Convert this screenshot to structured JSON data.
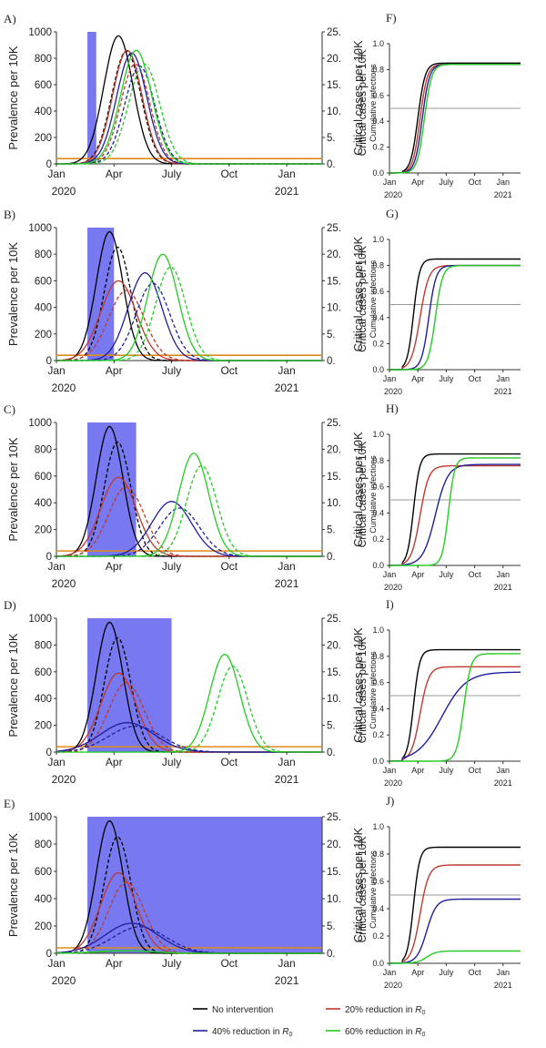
{
  "left_panel": {
    "ylabel_left": "Prevalence per 10K",
    "ylabel_right": "Critical cases per 10K",
    "yticks_left": [
      "0",
      "200",
      "400",
      "600",
      "800",
      "1000"
    ],
    "yticks_right": [
      "0.",
      "5.",
      "10.",
      "15.",
      "20.",
      "25."
    ],
    "xticks_top": [
      "Jan",
      "Apr",
      "July",
      "Oct",
      "Jan"
    ],
    "year_left": "2020",
    "year_right": "2021"
  },
  "right_panel": {
    "ylabel_main": "Critical cases per 10K",
    "ylabel_sub": "Cumulative infections",
    "yticks": [
      "0.0",
      "0.2",
      "0.4",
      "0.6",
      "0.8",
      "1.0"
    ],
    "xticks_top": [
      "Jan",
      "Apr",
      "July",
      "Oct",
      "Jan"
    ],
    "year_left": "2020",
    "year_right": "2021"
  },
  "legend": [
    {
      "label": "No intervention",
      "color": "#000000"
    },
    {
      "label": "20% reduction in R0",
      "color": "#c0392b"
    },
    {
      "label": "40% reduction in R0",
      "color": "#1f1f9a"
    },
    {
      "label": "60% reduction in R0",
      "color": "#22cc22"
    }
  ],
  "chart_data": [
    {
      "type": "line",
      "panel": "A)",
      "xlabel": "",
      "ylabel": "Prevalence per 10K",
      "ylim": [
        0,
        1000
      ],
      "intervention_weeks": [
        7,
        9
      ],
      "threshold_prevalence": 40,
      "series": [
        {
          "name": "No intervention",
          "peak_week": 14,
          "peak_value": 970,
          "width": 3.3
        },
        {
          "name": "20% reduction in R0",
          "peak_week": 16,
          "peak_value": 860,
          "width": 3.3
        },
        {
          "name": "40% reduction in R0",
          "peak_week": 17,
          "peak_value": 840,
          "width": 3.4
        },
        {
          "name": "60% reduction in R0",
          "peak_week": 18,
          "peak_value": 860,
          "width": 3.5
        }
      ]
    },
    {
      "type": "line",
      "panel": "B)",
      "xlabel": "",
      "ylabel": "Prevalence per 10K",
      "ylim": [
        0,
        1000
      ],
      "intervention_weeks": [
        7,
        13
      ],
      "threshold_prevalence": 40,
      "series": [
        {
          "name": "No intervention",
          "peak_week": 12,
          "peak_value": 970,
          "width": 3.0
        },
        {
          "name": "20% reduction in R0",
          "peak_week": 14,
          "peak_value": 600,
          "width": 4.0
        },
        {
          "name": "40% reduction in R0",
          "peak_week": 20,
          "peak_value": 660,
          "width": 3.8
        },
        {
          "name": "60% reduction in R0",
          "peak_week": 24,
          "peak_value": 800,
          "width": 3.4
        }
      ]
    },
    {
      "type": "line",
      "panel": "C)",
      "xlabel": "",
      "ylabel": "Prevalence per 10K",
      "ylim": [
        0,
        1000
      ],
      "intervention_weeks": [
        7,
        18
      ],
      "threshold_prevalence": 40,
      "series": [
        {
          "name": "No intervention",
          "peak_week": 12,
          "peak_value": 970,
          "width": 3.0
        },
        {
          "name": "20% reduction in R0",
          "peak_week": 14,
          "peak_value": 590,
          "width": 4.0
        },
        {
          "name": "40% reduction in R0",
          "peak_week": 26,
          "peak_value": 410,
          "width": 4.5
        },
        {
          "name": "60% reduction in R0",
          "peak_week": 31,
          "peak_value": 770,
          "width": 3.4
        }
      ]
    },
    {
      "type": "line",
      "panel": "D)",
      "xlabel": "",
      "ylabel": "Prevalence per 10K",
      "ylim": [
        0,
        1000
      ],
      "intervention_weeks": [
        7,
        26
      ],
      "threshold_prevalence": 40,
      "series": [
        {
          "name": "No intervention",
          "peak_week": 12,
          "peak_value": 970,
          "width": 3.0
        },
        {
          "name": "20% reduction in R0",
          "peak_week": 14,
          "peak_value": 590,
          "width": 4.0
        },
        {
          "name": "40% reduction in R0",
          "peak_week": 16,
          "peak_value": 220,
          "width": 6.0
        },
        {
          "name": "60% reduction in R0",
          "peak_week": 38,
          "peak_value": 730,
          "width": 3.4
        }
      ]
    },
    {
      "type": "line",
      "panel": "E)",
      "xlabel": "",
      "ylabel": "Prevalence per 10K",
      "ylim": [
        0,
        1000
      ],
      "intervention_weeks": [
        7,
        60
      ],
      "threshold_prevalence": 40,
      "series": [
        {
          "name": "No intervention",
          "peak_week": 12,
          "peak_value": 970,
          "width": 3.0
        },
        {
          "name": "20% reduction in R0",
          "peak_week": 14,
          "peak_value": 590,
          "width": 4.0
        },
        {
          "name": "40% reduction in R0",
          "peak_week": 17,
          "peak_value": 220,
          "width": 6.0
        },
        {
          "name": "60% reduction in R0",
          "peak_week": 15,
          "peak_value": 20,
          "width": 6.0
        }
      ]
    },
    {
      "type": "line",
      "panel": "F)",
      "xlabel": "",
      "ylabel": "Cumulative infections",
      "ylim": [
        0,
        1
      ],
      "reference_line": 0.5,
      "series": [
        {
          "name": "No intervention",
          "final": 0.85,
          "mid_week": 13,
          "k": 0.6
        },
        {
          "name": "20% reduction in R0",
          "final": 0.84,
          "mid_week": 14,
          "k": 0.6
        },
        {
          "name": "40% reduction in R0",
          "final": 0.84,
          "mid_week": 15,
          "k": 0.6
        },
        {
          "name": "60% reduction in R0",
          "final": 0.84,
          "mid_week": 16,
          "k": 0.6
        }
      ]
    },
    {
      "type": "line",
      "panel": "G)",
      "xlabel": "",
      "ylabel": "Cumulative infections",
      "ylim": [
        0,
        1
      ],
      "reference_line": 0.5,
      "series": [
        {
          "name": "No intervention",
          "final": 0.85,
          "mid_week": 11,
          "k": 0.7
        },
        {
          "name": "20% reduction in R0",
          "final": 0.8,
          "mid_week": 14,
          "k": 0.5
        },
        {
          "name": "40% reduction in R0",
          "final": 0.8,
          "mid_week": 18,
          "k": 0.6
        },
        {
          "name": "60% reduction in R0",
          "final": 0.8,
          "mid_week": 21,
          "k": 0.6
        }
      ]
    },
    {
      "type": "line",
      "panel": "H)",
      "xlabel": "",
      "ylabel": "Cumulative infections",
      "ylim": [
        0,
        1
      ],
      "reference_line": 0.5,
      "series": [
        {
          "name": "No intervention",
          "final": 0.85,
          "mid_week": 11,
          "k": 0.7
        },
        {
          "name": "20% reduction in R0",
          "final": 0.76,
          "mid_week": 14,
          "k": 0.5
        },
        {
          "name": "40% reduction in R0",
          "final": 0.77,
          "mid_week": 21,
          "k": 0.35
        },
        {
          "name": "60% reduction in R0",
          "final": 0.82,
          "mid_week": 27,
          "k": 0.7
        }
      ]
    },
    {
      "type": "line",
      "panel": "I)",
      "xlabel": "",
      "ylabel": "Cumulative infections",
      "ylim": [
        0,
        1
      ],
      "reference_line": 0.5,
      "series": [
        {
          "name": "No intervention",
          "final": 0.85,
          "mid_week": 11,
          "k": 0.7
        },
        {
          "name": "20% reduction in R0",
          "final": 0.72,
          "mid_week": 14,
          "k": 0.5
        },
        {
          "name": "40% reduction in R0",
          "final": 0.68,
          "mid_week": 24,
          "k": 0.18
        },
        {
          "name": "60% reduction in R0",
          "final": 0.82,
          "mid_week": 34,
          "k": 0.6
        }
      ]
    },
    {
      "type": "line",
      "panel": "J)",
      "xlabel": "",
      "ylabel": "Cumulative infections",
      "ylim": [
        0,
        1
      ],
      "reference_line": 0.5,
      "series": [
        {
          "name": "No intervention",
          "final": 0.85,
          "mid_week": 11,
          "k": 0.7
        },
        {
          "name": "20% reduction in R0",
          "final": 0.72,
          "mid_week": 14,
          "k": 0.5
        },
        {
          "name": "40% reduction in R0",
          "final": 0.47,
          "mid_week": 17,
          "k": 0.45
        },
        {
          "name": "60% reduction in R0",
          "final": 0.09,
          "mid_week": 17,
          "k": 0.45
        }
      ]
    }
  ]
}
